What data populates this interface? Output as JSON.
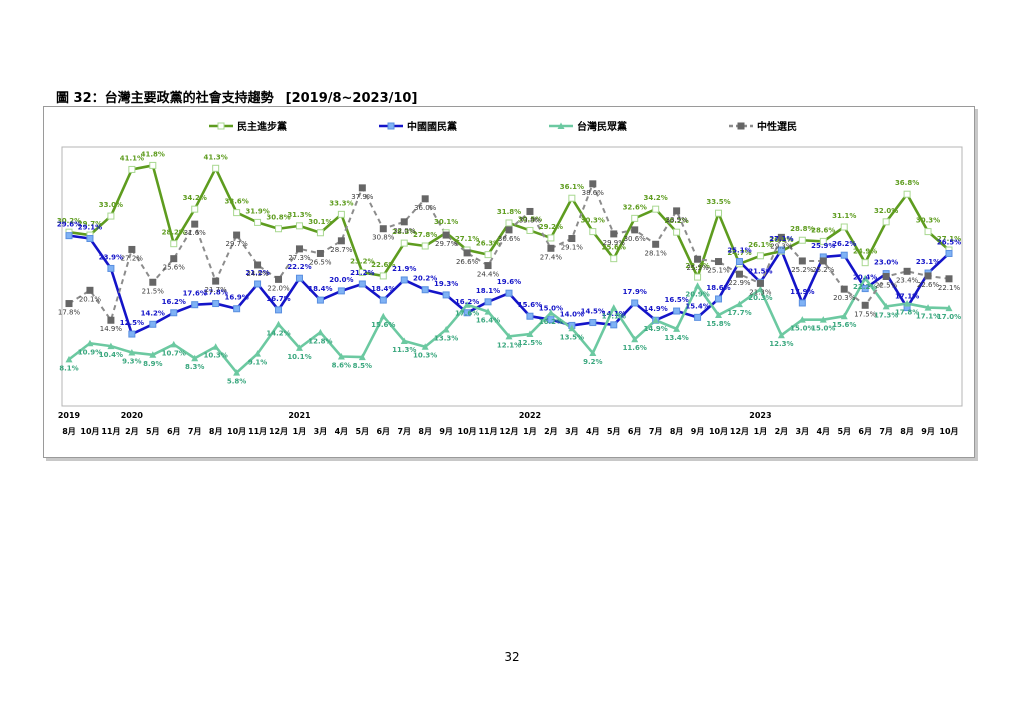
{
  "figure": {
    "title": "圖 32：台灣主要政黨的社會支持趨勢",
    "range": "[2019/8~2023/10]"
  },
  "page_number": "32",
  "chart_data": {
    "type": "line",
    "x_months": [
      "8月",
      "10月",
      "11月",
      "2月",
      "5月",
      "6月",
      "7月",
      "8月",
      "10月",
      "11月",
      "12月",
      "1月",
      "3月",
      "4月",
      "5月",
      "6月",
      "7月",
      "8月",
      "9月",
      "10月",
      "11月",
      "12月",
      "1月",
      "2月",
      "3月",
      "4月",
      "5月",
      "6月",
      "7月",
      "8月",
      "9月",
      "10月",
      "12月",
      "1月",
      "2月",
      "3月",
      "4月",
      "5月",
      "6月",
      "7月",
      "8月",
      "9月",
      "10月"
    ],
    "x_years": [
      {
        "index": 0,
        "label": "2019"
      },
      {
        "index": 3,
        "label": "2020"
      },
      {
        "index": 11,
        "label": "2021"
      },
      {
        "index": 22,
        "label": "2022"
      },
      {
        "index": 33,
        "label": "2023"
      }
    ],
    "ylim": [
      0,
      45
    ],
    "legend_position": "top",
    "series": [
      {
        "name": "民主進步黨",
        "color": "#5e9c1f",
        "label_color": "#5e9c1f",
        "dash": "",
        "marker": "square-light",
        "values": [
          30.2,
          29.7,
          33.0,
          41.1,
          41.8,
          28.2,
          34.2,
          41.3,
          33.6,
          31.9,
          30.8,
          31.3,
          30.1,
          33.3,
          23.2,
          22.6,
          28.3,
          27.8,
          30.1,
          27.1,
          26.3,
          31.8,
          30.5,
          29.2,
          36.1,
          30.3,
          25.6,
          32.6,
          34.2,
          30.2,
          22.4,
          33.5,
          24.7,
          26.1,
          26.9,
          28.8,
          28.6,
          31.1,
          24.9,
          32.0,
          36.8,
          30.3,
          27.1
        ]
      },
      {
        "name": "中國國民黨",
        "color": "#1414c8",
        "label_color": "#1414c8",
        "dash": "",
        "marker": "square-blue",
        "values": [
          29.6,
          29.1,
          23.9,
          12.5,
          14.2,
          16.2,
          17.6,
          17.8,
          16.9,
          21.2,
          16.7,
          22.2,
          18.4,
          20.0,
          21.2,
          18.4,
          21.9,
          20.2,
          19.3,
          16.2,
          18.1,
          19.6,
          15.6,
          15.0,
          14.0,
          14.5,
          14.1,
          17.9,
          14.9,
          16.5,
          15.4,
          18.6,
          25.1,
          21.5,
          27.1,
          17.9,
          25.9,
          26.2,
          20.4,
          23.0,
          17.1,
          23.1,
          26.5
        ]
      },
      {
        "name": "台灣民眾黨",
        "color": "#6cc9a1",
        "label_color": "#3aa77e",
        "dash": "",
        "marker": "triangle",
        "values": [
          8.1,
          10.9,
          10.4,
          9.3,
          8.9,
          10.7,
          8.3,
          10.3,
          5.8,
          9.1,
          14.2,
          10.1,
          12.8,
          8.6,
          8.5,
          15.6,
          11.3,
          10.3,
          13.3,
          17.6,
          16.4,
          12.1,
          12.5,
          16.2,
          13.5,
          9.2,
          17.1,
          11.6,
          14.9,
          13.4,
          20.9,
          15.8,
          17.7,
          20.3,
          12.3,
          15.0,
          15.0,
          15.6,
          22.2,
          17.3,
          17.8,
          17.1,
          17.0
        ]
      },
      {
        "name": "中性選民",
        "color": "#8c8c8c",
        "label_color": "#3a3a3a",
        "dash": "5,4",
        "marker": "square-gray",
        "values": [
          17.8,
          20.1,
          14.9,
          27.2,
          21.5,
          25.6,
          31.6,
          21.7,
          29.7,
          24.5,
          22.0,
          27.3,
          26.5,
          28.7,
          37.9,
          30.8,
          32.0,
          36.0,
          29.7,
          26.6,
          24.4,
          30.6,
          33.8,
          27.4,
          29.1,
          38.6,
          29.9,
          30.6,
          28.1,
          33.9,
          25.5,
          25.1,
          22.9,
          21.3,
          29.3,
          25.2,
          25.2,
          20.3,
          17.5,
          22.5,
          23.4,
          22.6,
          22.1
        ]
      }
    ],
    "value_labels": [
      [
        "30.2%",
        "29.7%",
        "33.0%",
        "41.1%",
        "41.8%",
        "28.2%",
        "34.2%",
        "41.3%",
        "33.6%",
        "31.9%",
        "30.8%",
        "31.3%",
        "30.1%",
        "33.3%",
        "23.2%",
        "22.6%",
        "28.3%",
        "27.8%",
        "30.1%",
        "27.1%",
        "26.3%",
        "31.8%",
        "30.5%",
        "29.2%",
        "36.1%",
        "30.3%",
        "25.6%",
        "32.6%",
        "34.2%",
        "30.2%",
        "22.4%",
        "33.5%",
        "24.7%",
        "26.1%",
        "26.9%",
        "28.8%",
        "28.6%",
        "31.1%",
        "24.9%",
        "32.0%",
        "36.8%",
        "30.3%",
        "27.1%"
      ],
      [
        "29.6%",
        "29.1%",
        "23.9%",
        "12.5%",
        "14.2%",
        "16.2%",
        "17.6%",
        "17.8%",
        "16.9%",
        "21.2%",
        "16.7%",
        "22.2%",
        "18.4%",
        "20.0%",
        "21.2%",
        "18.4%",
        "21.9%",
        "20.2%",
        "19.3%",
        "16.2%",
        "18.1%",
        "19.6%",
        "15.6%",
        "15.0%",
        "14.0%",
        "14.5%",
        "14.1%",
        "17.9%",
        "14.9%",
        "16.5%",
        "15.4%",
        "18.6%",
        "25.1%",
        "21.5%",
        "27.1%",
        "17.9%",
        "25.9%",
        "26.2%",
        "20.4%",
        "23.0%",
        "17.1%",
        "23.1%",
        "26.5%"
      ],
      [
        "8.1%",
        "10.9%",
        "10.4%",
        "9.3%",
        "8.9%",
        "10.7%",
        "8.3%",
        "10.3%",
        "5.8%",
        "9.1%",
        "14.2%",
        "10.1%",
        "12.8%",
        "8.6%",
        "8.5%",
        "15.6%",
        "11.3%",
        "10.3%",
        "13.3%",
        "17.6%",
        "16.4%",
        "12.1%",
        "12.5%",
        "16.2%",
        "13.5%",
        "9.2%",
        "17.1%",
        "11.6%",
        "14.9%",
        "13.4%",
        "20.9%",
        "15.8%",
        "17.7%",
        "20.3%",
        "12.3%",
        "15.0%",
        "15.0%",
        "15.6%",
        "22.2%",
        "17.3%",
        "17.8%",
        "17.1%",
        "17.0%"
      ],
      [
        "17.8%",
        "20.1%",
        "14.9%",
        "27.2%",
        "21.5%",
        "25.6%",
        "31.6%",
        "21.7%",
        "29.7%",
        "24.5%",
        "22.0%",
        "27.3%",
        "26.5%",
        "28.7%",
        "37.9%",
        "30.8%",
        "32.0%",
        "36.0%",
        "29.7%",
        "26.6%",
        "24.4%",
        "30.6%",
        "33.8%",
        "27.4%",
        "29.1%",
        "38.6%",
        "29.9%",
        "30.6%",
        "28.1%",
        "33.9%",
        "25.5%",
        "25.1%",
        "22.9%",
        "21.3%",
        "29.3%",
        "25.2%",
        "25.2%",
        "20.3%",
        "17.5%",
        "22.5%",
        "23.4%",
        "22.6%",
        "22.1%"
      ]
    ]
  }
}
